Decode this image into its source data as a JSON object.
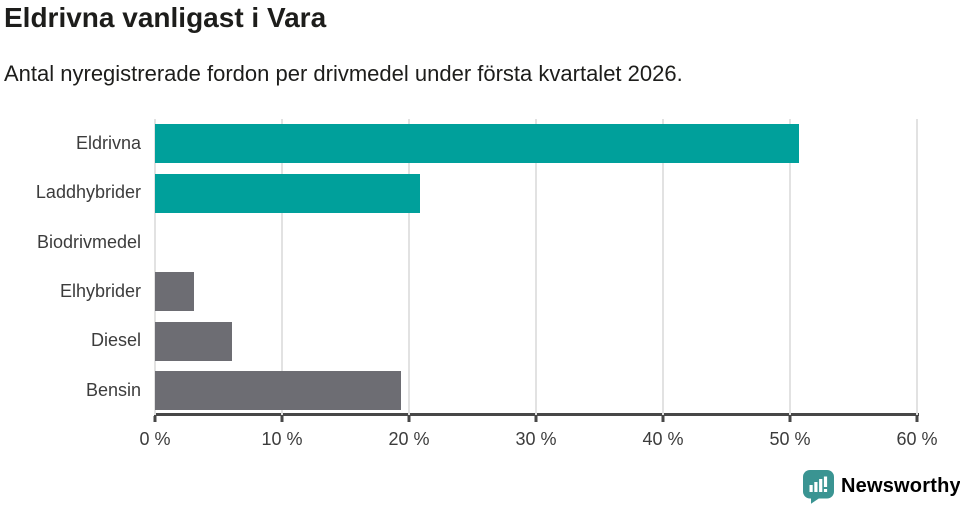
{
  "header": {
    "title": "Eldrivna vanligast i Vara",
    "subtitle": "Antal nyregistrerade fordon per drivmedel under första kvartalet 2026."
  },
  "chart_data": {
    "type": "bar",
    "orientation": "horizontal",
    "title": "Eldrivna vanligast i Vara",
    "subtitle": "Antal nyregistrerade fordon per drivmedel under första kvartalet 2026.",
    "categories": [
      "Eldrivna",
      "Laddhybrider",
      "Biodrivmedel",
      "Elhybrider",
      "Diesel",
      "Bensin"
    ],
    "values": [
      50.7,
      20.9,
      0,
      3.1,
      6.1,
      19.4
    ],
    "unit": "%",
    "bar_colors": [
      "#00A09B",
      "#00A09B",
      "#6D6D73",
      "#6D6D73",
      "#6D6D73",
      "#6D6D73"
    ],
    "xlim": [
      0,
      60
    ],
    "x_ticks": [
      "0 %",
      "10 %",
      "20 %",
      "30 %",
      "40 %",
      "50 %",
      "60 %"
    ],
    "x_tick_values": [
      0,
      10,
      20,
      30,
      40,
      50,
      60
    ],
    "grid": "vertical-only",
    "legend": "none",
    "xlabel": "",
    "ylabel": ""
  },
  "footer": {
    "brand": "Newsworthy"
  },
  "colors": {
    "teal": "#00A09B",
    "gray": "#6D6D73",
    "logo_teal": "#3A9492",
    "axis": "#474747",
    "gridline": "#E2E2E2",
    "heading_text": "#1D1D1B",
    "label_text": "#3C3C3C",
    "background": "#FFFFFF"
  }
}
